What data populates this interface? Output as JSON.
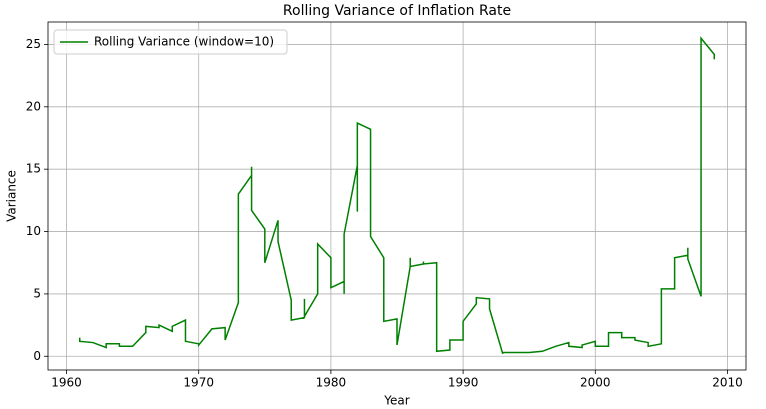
{
  "chart_data": {
    "type": "line",
    "title": "Rolling Variance of Inflation Rate",
    "x_label": "Year",
    "y_label": "Variance",
    "x": [
      1961,
      1961,
      1962,
      1963,
      1963,
      1964,
      1964,
      1965,
      1966,
      1966,
      1967,
      1967,
      1968,
      1968,
      1969,
      1969,
      1970,
      1970,
      1971,
      1972,
      1972,
      1973,
      1973,
      1974,
      1974,
      1974,
      1975,
      1975,
      1976,
      1976,
      1977,
      1977,
      1978,
      1978,
      1978,
      1979,
      1979,
      1980,
      1980,
      1981,
      1981,
      1981,
      1982,
      1982,
      1982,
      1983,
      1983,
      1984,
      1984,
      1985,
      1985,
      1986,
      1986,
      1986,
      1987,
      1987,
      1987,
      1988,
      1988,
      1989,
      1989,
      1990,
      1990,
      1991,
      1991,
      1992,
      1992,
      1993,
      1993,
      1994,
      1995,
      1996,
      1997,
      1998,
      1998,
      1999,
      1999,
      2000,
      2000,
      2001,
      2001,
      2002,
      2002,
      2003,
      2003,
      2004,
      2004,
      2005,
      2005,
      2006,
      2006,
      2007,
      2007,
      2007,
      2008,
      2008,
      2009,
      2009
    ],
    "series": [
      {
        "name": "Rolling Variance (window=10)",
        "color": "#008000",
        "values": [
          1.5,
          1.2,
          1.1,
          0.7,
          1.0,
          1.0,
          0.8,
          0.8,
          1.9,
          2.4,
          2.3,
          2.5,
          2.0,
          2.4,
          2.9,
          1.2,
          1.0,
          0.9,
          2.2,
          2.3,
          1.3,
          4.3,
          13.0,
          14.5,
          15.2,
          11.7,
          10.2,
          7.5,
          10.9,
          9.2,
          4.5,
          2.9,
          3.1,
          4.6,
          3.2,
          5.0,
          9.0,
          7.9,
          5.5,
          6.0,
          5.0,
          9.8,
          15.3,
          11.6,
          18.7,
          18.2,
          9.6,
          7.9,
          2.8,
          3.0,
          0.9,
          7.2,
          7.9,
          7.2,
          7.4,
          7.6,
          7.4,
          7.5,
          0.4,
          0.5,
          1.3,
          1.3,
          2.8,
          4.2,
          4.7,
          4.6,
          3.8,
          0.2,
          0.3,
          0.3,
          0.3,
          0.4,
          0.8,
          1.1,
          0.8,
          0.7,
          0.9,
          1.2,
          0.8,
          0.8,
          1.9,
          1.9,
          1.5,
          1.5,
          1.3,
          1.1,
          0.8,
          1.0,
          5.4,
          5.4,
          7.9,
          8.1,
          8.7,
          7.8,
          4.8,
          25.5,
          24.2,
          23.8
        ]
      }
    ],
    "xlim": [
      1958.6,
      2011.4
    ],
    "ylim": [
      -1.1,
      26.8
    ],
    "xticks": [
      1960,
      1970,
      1980,
      1990,
      2000,
      2010
    ],
    "yticks": [
      0,
      5,
      10,
      15,
      20,
      25
    ],
    "grid": true,
    "legend": "upper left"
  }
}
